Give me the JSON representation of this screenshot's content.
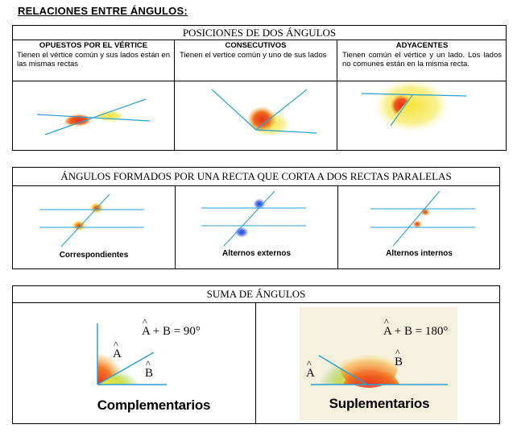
{
  "page_title": "RELACIONES ENTRE ÁNGULOS:",
  "positions": {
    "header": "POSICIONES DE DOS ÁNGULOS",
    "columns": [
      {
        "title": "OPUESTOS POR EL VÉRTICE",
        "description": "Tienen el vértice común y sus lados están en las mismas rectas"
      },
      {
        "title": "CONSECUTIVOS",
        "description": "Tienen el vertice común y uno de sus lados"
      },
      {
        "title": "ADYACENTES",
        "description": "Tienen común el vértice y un lado. Los lados no comunes están en la misma recta."
      }
    ]
  },
  "parallels": {
    "header": "ÁNGULOS FORMADOS POR UNA RECTA QUE CORTA A DOS RECTAS PARALELAS",
    "captions": [
      "Correspondientes",
      "Alternos externos",
      "Alternos internos"
    ]
  },
  "sum": {
    "header": "SUMA DE ÁNGULOS",
    "complementary": {
      "formula_lhs": "A + B = 90°",
      "a": "A",
      "b": "B",
      "caption": "Complementarios"
    },
    "supplementary": {
      "formula_lhs": "A + B = 180°",
      "a": "A",
      "b": "B",
      "caption": "Suplementarios"
    }
  },
  "colors": {
    "red": "#e8301c",
    "orange": "#f5a623",
    "yellow": "#f7e43b",
    "blue": "#1f3fd6",
    "line": "#2a9fd6",
    "background_panel": "#f6f0df"
  }
}
